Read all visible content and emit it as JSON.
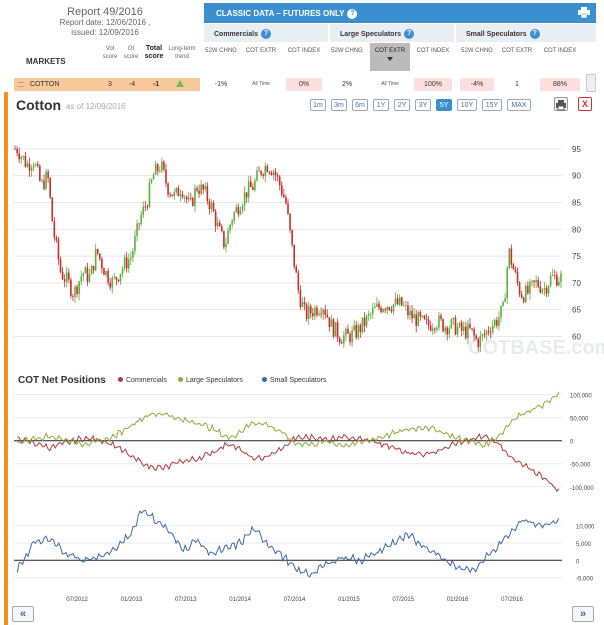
{
  "report": {
    "title": "Report 49/2016",
    "report_date": "Report date: 12/06/2016 ,",
    "issued": "issued: 12/09/2016"
  },
  "markets_header": {
    "markets": "MARKETS",
    "vol": "Vol score",
    "oi": "OI score",
    "total": "Total score",
    "trend": "Long-term trend"
  },
  "panel": {
    "title": "CLASSIC DATA – FUTURES ONLY",
    "groups": [
      "Commercials",
      "Large Speculators",
      "Small Speculators"
    ],
    "subheads": [
      "52W CHNG",
      "COT EXTR",
      "COT INDEX"
    ]
  },
  "row": {
    "name": "COTTON",
    "vol": "3",
    "oi": "-4",
    "total": "-1",
    "trend": "up",
    "commercials": {
      "chng": "-1%",
      "extr": "All Time",
      "index": "0%"
    },
    "large": {
      "chng": "2%",
      "extr": "All Time",
      "index": "100%"
    },
    "small": {
      "chng": "-4%",
      "extr": "1",
      "index": "88%"
    }
  },
  "chart": {
    "title": "Cotton",
    "as_of": "as of 12/09/2016",
    "ranges": [
      "1m",
      "3m",
      "6m",
      "1Y",
      "2Y",
      "3Y",
      "5Y",
      "10Y",
      "15Y",
      "MAX"
    ],
    "active_range": "5Y",
    "close_label": "X",
    "watermark": "COTBASE.com"
  },
  "cot": {
    "title": "COT Net Positions",
    "legend": [
      {
        "name": "Commercials",
        "color": "#b13a3a"
      },
      {
        "name": "Large Speculators",
        "color": "#8aac3c"
      },
      {
        "name": "Small Speculators",
        "color": "#3e6aa6"
      }
    ]
  },
  "nav": {
    "prev": "«",
    "next": "»"
  },
  "chart_data": [
    {
      "type": "candlestick",
      "title": "Cotton",
      "ylim": [
        56,
        100
      ],
      "yticks": [
        60,
        65,
        70,
        75,
        80,
        85,
        90,
        95
      ],
      "xlim": [
        "2011-12",
        "2016-12"
      ],
      "close": [
        [
          2011.95,
          95
        ],
        [
          2012.04,
          92
        ],
        [
          2012.1,
          93
        ],
        [
          2012.17,
          88
        ],
        [
          2012.23,
          90
        ],
        [
          2012.28,
          80
        ],
        [
          2012.35,
          72
        ],
        [
          2012.42,
          70
        ],
        [
          2012.47,
          68
        ],
        [
          2012.55,
          72
        ],
        [
          2012.62,
          71
        ],
        [
          2012.68,
          76
        ],
        [
          2012.76,
          72
        ],
        [
          2012.83,
          70
        ],
        [
          2012.92,
          73
        ],
        [
          2013.0,
          75
        ],
        [
          2013.08,
          82
        ],
        [
          2013.14,
          85
        ],
        [
          2013.2,
          90
        ],
        [
          2013.27,
          92
        ],
        [
          2013.33,
          88
        ],
        [
          2013.4,
          86
        ],
        [
          2013.46,
          88
        ],
        [
          2013.54,
          84
        ],
        [
          2013.6,
          88
        ],
        [
          2013.67,
          87
        ],
        [
          2013.74,
          84
        ],
        [
          2013.8,
          80
        ],
        [
          2013.86,
          77
        ],
        [
          2013.92,
          82
        ],
        [
          2014.0,
          85
        ],
        [
          2014.06,
          87
        ],
        [
          2014.12,
          88
        ],
        [
          2014.19,
          91
        ],
        [
          2014.25,
          92
        ],
        [
          2014.31,
          91
        ],
        [
          2014.37,
          88
        ],
        [
          2014.42,
          85
        ],
        [
          2014.48,
          76
        ],
        [
          2014.54,
          68
        ],
        [
          2014.6,
          64
        ],
        [
          2014.68,
          65
        ],
        [
          2014.76,
          66
        ],
        [
          2014.84,
          62
        ],
        [
          2014.92,
          60
        ],
        [
          2015.0,
          60
        ],
        [
          2015.08,
          61
        ],
        [
          2015.16,
          63
        ],
        [
          2015.24,
          65
        ],
        [
          2015.32,
          66
        ],
        [
          2015.4,
          66
        ],
        [
          2015.48,
          66
        ],
        [
          2015.56,
          64
        ],
        [
          2015.64,
          63
        ],
        [
          2015.72,
          62
        ],
        [
          2015.8,
          63
        ],
        [
          2015.88,
          62
        ],
        [
          2015.96,
          62
        ],
        [
          2016.04,
          61
        ],
        [
          2016.12,
          61
        ],
        [
          2016.18,
          59
        ],
        [
          2016.24,
          60
        ],
        [
          2016.3,
          62
        ],
        [
          2016.36,
          63
        ],
        [
          2016.42,
          65
        ],
        [
          2016.47,
          76
        ],
        [
          2016.52,
          72
        ],
        [
          2016.58,
          68
        ],
        [
          2016.64,
          68
        ],
        [
          2016.72,
          70
        ],
        [
          2016.8,
          69
        ],
        [
          2016.86,
          71
        ],
        [
          2016.93,
          71
        ]
      ]
    },
    {
      "type": "line",
      "title": "COT Net Positions",
      "ylim": [
        -120000,
        110000
      ],
      "yticks": [
        -100000,
        -50000,
        0,
        50000,
        100000
      ],
      "series": [
        {
          "name": "Commercials",
          "points": [
            [
              2011.95,
              5000
            ],
            [
              2012.1,
              -5000
            ],
            [
              2012.25,
              -15000
            ],
            [
              2012.4,
              -5000
            ],
            [
              2012.55,
              5000
            ],
            [
              2012.7,
              3000
            ],
            [
              2012.85,
              -10000
            ],
            [
              2013.0,
              -35000
            ],
            [
              2013.15,
              -55000
            ],
            [
              2013.3,
              -60000
            ],
            [
              2013.45,
              -45000
            ],
            [
              2013.6,
              -40000
            ],
            [
              2013.75,
              -25000
            ],
            [
              2013.9,
              -5000
            ],
            [
              2014.0,
              -20000
            ],
            [
              2014.12,
              -40000
            ],
            [
              2014.25,
              -35000
            ],
            [
              2014.4,
              -15000
            ],
            [
              2014.5,
              5000
            ],
            [
              2014.65,
              8000
            ],
            [
              2014.8,
              2000
            ],
            [
              2014.95,
              10000
            ],
            [
              2015.1,
              5000
            ],
            [
              2015.25,
              -5000
            ],
            [
              2015.4,
              -15000
            ],
            [
              2015.55,
              -25000
            ],
            [
              2015.7,
              -30000
            ],
            [
              2015.85,
              -20000
            ],
            [
              2016.0,
              -5000
            ],
            [
              2016.12,
              2000
            ],
            [
              2016.25,
              10000
            ],
            [
              2016.4,
              -10000
            ],
            [
              2016.5,
              -40000
            ],
            [
              2016.65,
              -60000
            ],
            [
              2016.8,
              -80000
            ],
            [
              2016.93,
              -110000
            ]
          ]
        },
        {
          "name": "Large Speculators",
          "points": [
            [
              2011.95,
              -5000
            ],
            [
              2012.1,
              5000
            ],
            [
              2012.25,
              10000
            ],
            [
              2012.4,
              2000
            ],
            [
              2012.55,
              -6000
            ],
            [
              2012.7,
              -3000
            ],
            [
              2012.85,
              10000
            ],
            [
              2013.0,
              35000
            ],
            [
              2013.15,
              55000
            ],
            [
              2013.3,
              60000
            ],
            [
              2013.45,
              45000
            ],
            [
              2013.6,
              40000
            ],
            [
              2013.75,
              25000
            ],
            [
              2013.9,
              5000
            ],
            [
              2014.0,
              20000
            ],
            [
              2014.12,
              40000
            ],
            [
              2014.25,
              35000
            ],
            [
              2014.4,
              15000
            ],
            [
              2014.5,
              -5000
            ],
            [
              2014.65,
              -8000
            ],
            [
              2014.8,
              -2000
            ],
            [
              2014.95,
              -10000
            ],
            [
              2015.1,
              -5000
            ],
            [
              2015.25,
              5000
            ],
            [
              2015.4,
              15000
            ],
            [
              2015.55,
              25000
            ],
            [
              2015.7,
              30000
            ],
            [
              2015.85,
              20000
            ],
            [
              2016.0,
              5000
            ],
            [
              2016.12,
              -2000
            ],
            [
              2016.25,
              -10000
            ],
            [
              2016.4,
              15000
            ],
            [
              2016.5,
              45000
            ],
            [
              2016.65,
              65000
            ],
            [
              2016.8,
              80000
            ],
            [
              2016.93,
              100000
            ]
          ]
        },
        {
          "name": "Small Speculators",
          "points": [
            [
              2011.95,
              -3000
            ],
            [
              2012.1,
              5000
            ],
            [
              2012.25,
              6000
            ],
            [
              2012.4,
              2000
            ],
            [
              2012.55,
              0
            ],
            [
              2012.7,
              1000
            ],
            [
              2012.85,
              3000
            ],
            [
              2013.0,
              8000
            ],
            [
              2013.1,
              15000
            ],
            [
              2013.2,
              12000
            ],
            [
              2013.3,
              10000
            ],
            [
              2013.4,
              6000
            ],
            [
              2013.5,
              3000
            ],
            [
              2013.6,
              6000
            ],
            [
              2013.72,
              2000
            ],
            [
              2013.85,
              3000
            ],
            [
              2014.0,
              5000
            ],
            [
              2014.12,
              9000
            ],
            [
              2014.25,
              5000
            ],
            [
              2014.4,
              1000
            ],
            [
              2014.52,
              -3000
            ],
            [
              2014.65,
              -4000
            ],
            [
              2014.8,
              -1000
            ],
            [
              2014.95,
              1000
            ],
            [
              2015.1,
              0
            ],
            [
              2015.25,
              2000
            ],
            [
              2015.4,
              5000
            ],
            [
              2015.55,
              7000
            ],
            [
              2015.7,
              4000
            ],
            [
              2015.85,
              1000
            ],
            [
              2016.0,
              -2000
            ],
            [
              2016.15,
              -3000
            ],
            [
              2016.3,
              2000
            ],
            [
              2016.45,
              7000
            ],
            [
              2016.6,
              12000
            ],
            [
              2016.75,
              10000
            ],
            [
              2016.93,
              11000
            ]
          ]
        }
      ]
    }
  ],
  "x_axis_labels": [
    "07/2012",
    "01/2013",
    "07/2013",
    "01/2014",
    "07/2014",
    "01/2015",
    "07/2015",
    "01/2016",
    "07/2016"
  ]
}
